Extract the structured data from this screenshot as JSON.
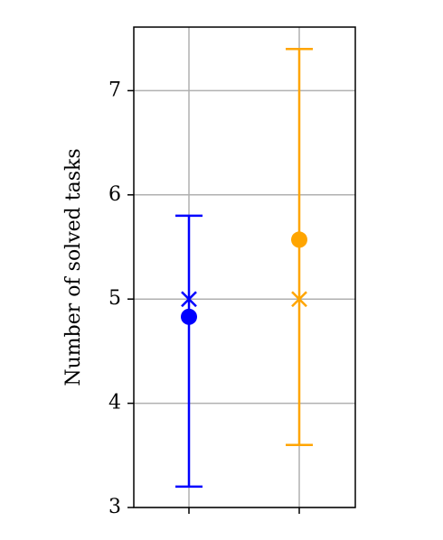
{
  "chart_data": {
    "type": "errorbar",
    "y_label": "Number of solved tasks",
    "categories": [
      null,
      null
    ],
    "groups": [
      {
        "color": "#0000ff",
        "mean": 4.83,
        "median": 5.0,
        "low": 3.2,
        "high": 5.8
      },
      {
        "color": "#ffa500",
        "mean": 5.57,
        "median": 5.0,
        "low": 3.6,
        "high": 7.4
      }
    ],
    "ylim": [
      3,
      7.61
    ],
    "yticks": [
      3,
      4,
      5,
      6,
      7
    ],
    "grid": true
  }
}
